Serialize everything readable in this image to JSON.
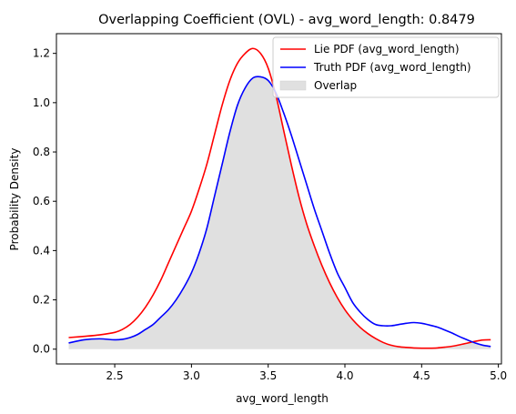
{
  "chart_data": {
    "type": "line",
    "title": "Overlapping Coefficient (OVL) - avg_word_length: 0.8479",
    "xlabel": "avg_word_length",
    "ylabel": "Probability Density",
    "xlim": [
      2.12,
      5.02
    ],
    "ylim": [
      -0.06,
      1.28
    ],
    "xticks": [
      2.5,
      3.0,
      3.5,
      4.0,
      4.5,
      5.0
    ],
    "xtick_labels": [
      "2.5",
      "3.0",
      "3.5",
      "4.0",
      "4.5",
      "5.0"
    ],
    "yticks": [
      0.0,
      0.2,
      0.4,
      0.6,
      0.8,
      1.0,
      1.2
    ],
    "ytick_labels": [
      "0.0",
      "0.2",
      "0.4",
      "0.6",
      "0.8",
      "1.0",
      "1.2"
    ],
    "grid": false,
    "legend_position": "top-right",
    "series": [
      {
        "name": "Lie PDF (avg_word_length)",
        "color": "#ff0000",
        "x": [
          2.2,
          2.3,
          2.4,
          2.5,
          2.55,
          2.6,
          2.65,
          2.7,
          2.75,
          2.8,
          2.85,
          2.9,
          2.95,
          3.0,
          3.05,
          3.1,
          3.15,
          3.2,
          3.25,
          3.3,
          3.35,
          3.4,
          3.45,
          3.5,
          3.55,
          3.6,
          3.65,
          3.7,
          3.75,
          3.8,
          3.85,
          3.9,
          3.95,
          4.0,
          4.05,
          4.1,
          4.15,
          4.2,
          4.25,
          4.3,
          4.35,
          4.4,
          4.45,
          4.5,
          4.55,
          4.6,
          4.65,
          4.7,
          4.75,
          4.8,
          4.85,
          4.9,
          4.95
        ],
        "y": [
          0.047,
          0.052,
          0.058,
          0.068,
          0.08,
          0.1,
          0.13,
          0.17,
          0.22,
          0.28,
          0.35,
          0.42,
          0.49,
          0.56,
          0.65,
          0.75,
          0.87,
          0.99,
          1.09,
          1.16,
          1.2,
          1.22,
          1.2,
          1.14,
          1.03,
          0.89,
          0.75,
          0.62,
          0.51,
          0.42,
          0.34,
          0.27,
          0.21,
          0.16,
          0.12,
          0.088,
          0.063,
          0.043,
          0.027,
          0.016,
          0.01,
          0.007,
          0.005,
          0.004,
          0.004,
          0.005,
          0.008,
          0.012,
          0.018,
          0.025,
          0.032,
          0.037,
          0.038
        ]
      },
      {
        "name": "Truth PDF (avg_word_length)",
        "color": "#0000ff",
        "x": [
          2.2,
          2.3,
          2.4,
          2.5,
          2.55,
          2.6,
          2.65,
          2.7,
          2.75,
          2.8,
          2.85,
          2.9,
          2.95,
          3.0,
          3.05,
          3.1,
          3.15,
          3.2,
          3.25,
          3.3,
          3.35,
          3.4,
          3.45,
          3.5,
          3.55,
          3.6,
          3.65,
          3.7,
          3.75,
          3.8,
          3.85,
          3.9,
          3.95,
          4.0,
          4.05,
          4.1,
          4.15,
          4.2,
          4.25,
          4.3,
          4.35,
          4.4,
          4.45,
          4.5,
          4.55,
          4.6,
          4.65,
          4.7,
          4.75,
          4.8,
          4.85,
          4.9,
          4.95
        ],
        "y": [
          0.025,
          0.038,
          0.042,
          0.038,
          0.04,
          0.047,
          0.06,
          0.08,
          0.1,
          0.13,
          0.16,
          0.2,
          0.25,
          0.31,
          0.39,
          0.49,
          0.62,
          0.75,
          0.88,
          0.99,
          1.06,
          1.1,
          1.105,
          1.09,
          1.04,
          0.96,
          0.87,
          0.77,
          0.67,
          0.57,
          0.48,
          0.39,
          0.31,
          0.25,
          0.19,
          0.15,
          0.12,
          0.1,
          0.095,
          0.095,
          0.1,
          0.105,
          0.108,
          0.105,
          0.098,
          0.09,
          0.078,
          0.065,
          0.05,
          0.037,
          0.025,
          0.016,
          0.011
        ]
      }
    ],
    "overlap": {
      "name": "Overlap",
      "color": "#e0e0e0",
      "x_range": [
        2.2,
        4.95
      ]
    }
  }
}
